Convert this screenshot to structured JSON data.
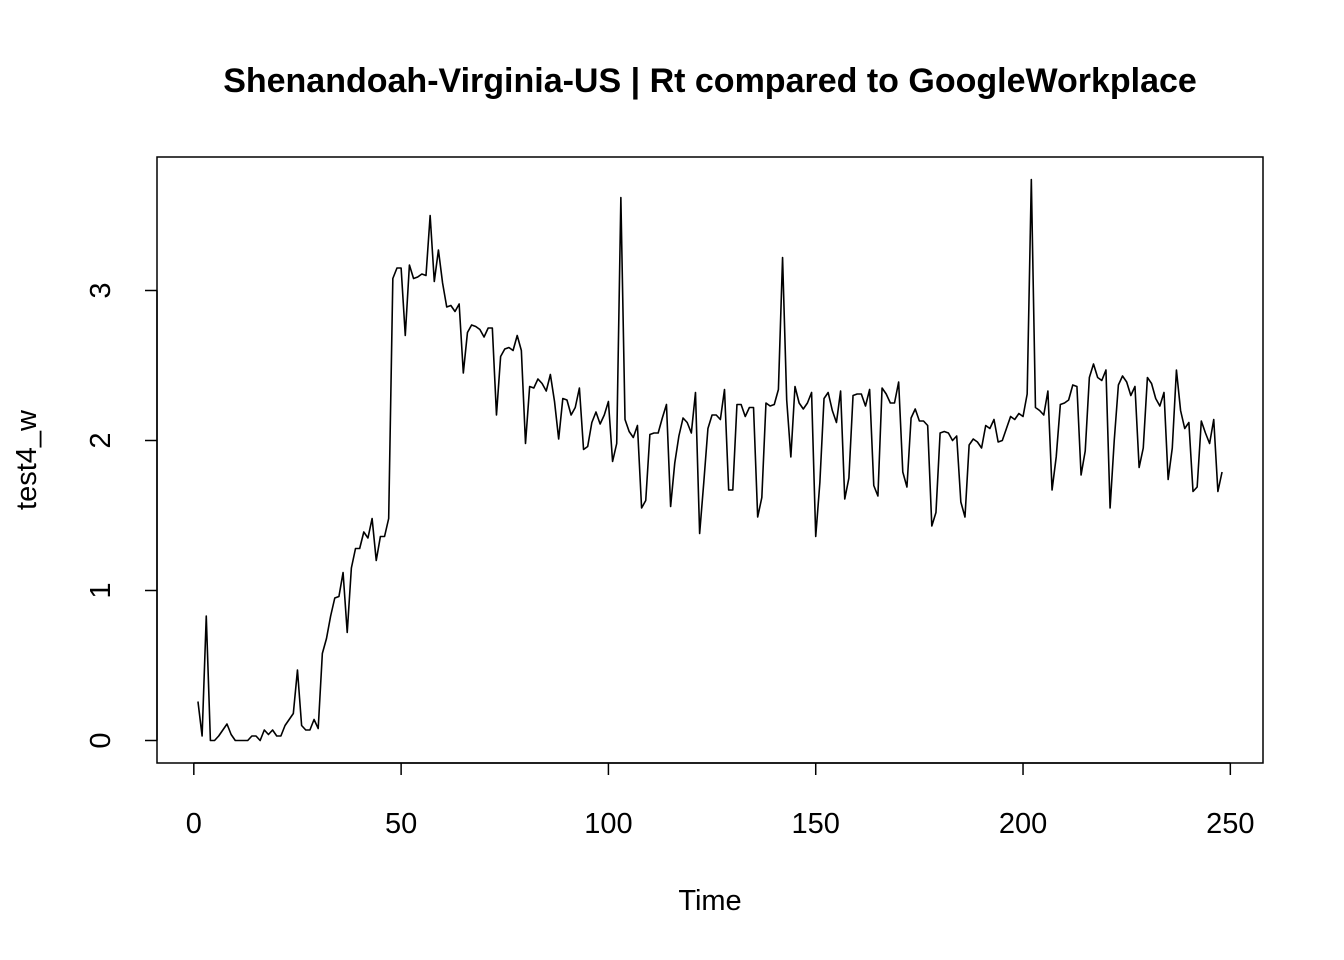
{
  "chart_data": {
    "type": "line",
    "title": "Shenandoah-Virginia-US | Rt compared to GoogleWorkplace",
    "x_label": "Time",
    "y_label": "test4_w",
    "x": [
      1,
      2,
      3,
      4,
      5,
      6,
      7,
      8,
      9,
      10,
      11,
      12,
      13,
      14,
      15,
      16,
      17,
      18,
      19,
      20,
      21,
      22,
      23,
      24,
      25,
      26,
      27,
      28,
      29,
      30,
      31,
      32,
      33,
      34,
      35,
      36,
      37,
      38,
      39,
      40,
      41,
      42,
      43,
      44,
      45,
      46,
      47,
      48,
      49,
      50,
      51,
      52,
      53,
      54,
      55,
      56,
      57,
      58,
      59,
      60,
      61,
      62,
      63,
      64,
      65,
      66,
      67,
      68,
      69,
      70,
      71,
      72,
      73,
      74,
      75,
      76,
      77,
      78,
      79,
      80,
      81,
      82,
      83,
      84,
      85,
      86,
      87,
      88,
      89,
      90,
      91,
      92,
      93,
      94,
      95,
      96,
      97,
      98,
      99,
      100,
      101,
      102,
      103,
      104,
      105,
      106,
      107,
      108,
      109,
      110,
      111,
      112,
      113,
      114,
      115,
      116,
      117,
      118,
      119,
      120,
      121,
      122,
      123,
      124,
      125,
      126,
      127,
      128,
      129,
      130,
      131,
      132,
      133,
      134,
      135,
      136,
      137,
      138,
      139,
      140,
      141,
      142,
      143,
      144,
      145,
      146,
      147,
      148,
      149,
      150,
      151,
      152,
      153,
      154,
      155,
      156,
      157,
      158,
      159,
      160,
      161,
      162,
      163,
      164,
      165,
      166,
      167,
      168,
      169,
      170,
      171,
      172,
      173,
      174,
      175,
      176,
      177,
      178,
      179,
      180,
      181,
      182,
      183,
      184,
      185,
      186,
      187,
      188,
      189,
      190,
      191,
      192,
      193,
      194,
      195,
      196,
      197,
      198,
      199,
      200,
      201,
      202,
      203,
      204,
      205,
      206,
      207,
      208,
      209,
      210,
      211,
      212,
      213,
      214,
      215,
      216,
      217,
      218,
      219,
      220,
      221,
      222,
      223,
      224,
      225,
      226,
      227,
      228,
      229,
      230,
      231,
      232,
      233,
      234,
      235,
      236,
      237,
      238,
      239,
      240,
      241,
      242,
      243,
      244,
      245,
      246,
      247,
      248
    ],
    "series": [
      {
        "name": "test4_w",
        "color": "#000000",
        "values": [
          0.26,
          0.03,
          0.83,
          0,
          0,
          0.03,
          0.07,
          0.11,
          0.04,
          0,
          0,
          0,
          0,
          0.03,
          0.03,
          0,
          0.07,
          0.04,
          0.07,
          0.03,
          0.03,
          0.1,
          0.14,
          0.18,
          0.47,
          0.1,
          0.07,
          0.07,
          0.14,
          0.08,
          0.58,
          0.68,
          0.83,
          0.95,
          0.96,
          1.12,
          0.72,
          1.15,
          1.28,
          1.28,
          1.39,
          1.35,
          1.48,
          1.2,
          1.36,
          1.36,
          1.48,
          3.08,
          3.15,
          3.15,
          2.7,
          3.17,
          3.08,
          3.09,
          3.11,
          3.1,
          3.5,
          3.06,
          3.27,
          3.05,
          2.89,
          2.9,
          2.86,
          2.91,
          2.45,
          2.72,
          2.77,
          2.76,
          2.74,
          2.69,
          2.75,
          2.75,
          2.17,
          2.56,
          2.61,
          2.62,
          2.6,
          2.7,
          2.6,
          1.98,
          2.36,
          2.35,
          2.41,
          2.38,
          2.33,
          2.44,
          2.26,
          2.01,
          2.28,
          2.27,
          2.17,
          2.22,
          2.35,
          1.94,
          1.96,
          2.12,
          2.19,
          2.11,
          2.17,
          2.26,
          1.86,
          1.98,
          3.62,
          2.14,
          2.06,
          2.02,
          2.1,
          1.55,
          1.6,
          2.04,
          2.05,
          2.05,
          2.15,
          2.24,
          1.56,
          1.85,
          2.03,
          2.15,
          2.12,
          2.05,
          2.32,
          1.38,
          1.72,
          2.08,
          2.17,
          2.17,
          2.14,
          2.34,
          1.67,
          1.67,
          2.24,
          2.24,
          2.16,
          2.22,
          2.22,
          1.49,
          1.62,
          2.25,
          2.23,
          2.24,
          2.34,
          3.22,
          2.27,
          1.89,
          2.36,
          2.25,
          2.21,
          2.25,
          2.32,
          1.36,
          1.72,
          2.28,
          2.32,
          2.2,
          2.12,
          2.33,
          1.61,
          1.75,
          2.3,
          2.31,
          2.31,
          2.23,
          2.34,
          1.7,
          1.63,
          2.35,
          2.31,
          2.25,
          2.25,
          2.39,
          1.79,
          1.69,
          2.15,
          2.21,
          2.13,
          2.13,
          2.1,
          1.43,
          1.52,
          2.05,
          2.06,
          2.05,
          2.0,
          2.03,
          1.59,
          1.49,
          1.97,
          2.01,
          1.99,
          1.95,
          2.1,
          2.08,
          2.14,
          1.99,
          2.0,
          2.08,
          2.16,
          2.14,
          2.18,
          2.16,
          2.31,
          3.74,
          2.22,
          2.2,
          2.17,
          2.33,
          1.67,
          1.89,
          2.24,
          2.25,
          2.27,
          2.37,
          2.36,
          1.77,
          1.93,
          2.42,
          2.51,
          2.42,
          2.4,
          2.47,
          1.55,
          2.0,
          2.37,
          2.43,
          2.39,
          2.3,
          2.36,
          1.82,
          1.95,
          2.42,
          2.38,
          2.28,
          2.23,
          2.32,
          1.74,
          1.95,
          2.47,
          2.2,
          2.08,
          2.12,
          1.66,
          1.69,
          2.13,
          2.05,
          1.98,
          2.14,
          1.66,
          1.79
        ]
      }
    ],
    "xlim": [
      -8.88,
      257.88
    ],
    "ylim": [
      -0.15,
      3.89
    ],
    "xticks": [
      0,
      50,
      100,
      150,
      200,
      250
    ],
    "yticks": [
      0,
      1,
      2,
      3
    ]
  }
}
